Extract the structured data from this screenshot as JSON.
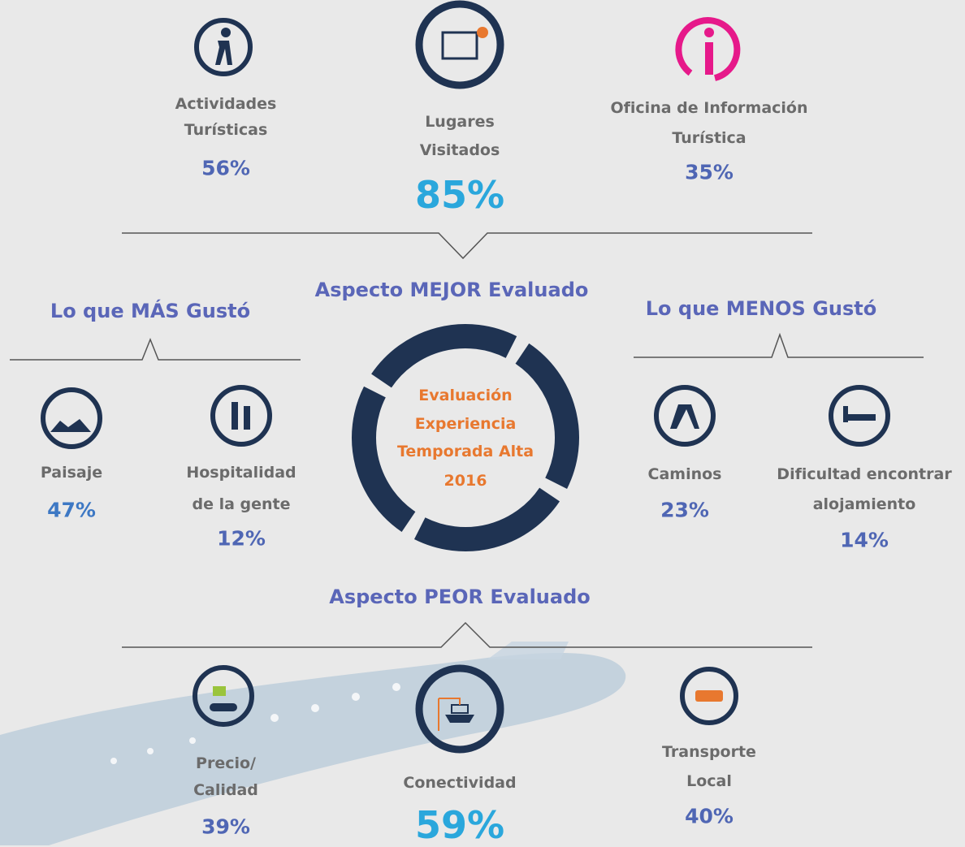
{
  "top": [
    {
      "label": [
        "Actividades",
        "Turísticas"
      ],
      "value": "56%"
    },
    {
      "label": [
        "Lugares",
        "Visitados"
      ],
      "value": "85%"
    },
    {
      "label": [
        "Oficina de Información",
        "Turística"
      ],
      "value": "35%"
    }
  ],
  "best_heading": "Aspecto MEJOR Evaluado",
  "most_liked": {
    "heading": "Lo que MÁS Gustó",
    "items": [
      {
        "label": [
          "Paisaje"
        ],
        "value": "47%"
      },
      {
        "label": [
          "Hospitalidad",
          "de la gente"
        ],
        "value": "12%"
      }
    ]
  },
  "least_liked": {
    "heading": "Lo que MENOS Gustó",
    "items": [
      {
        "label": [
          "Caminos"
        ],
        "value": "23%"
      },
      {
        "label": [
          "Dificultad encontrar",
          "alojamiento"
        ],
        "value": "14%"
      }
    ]
  },
  "center": [
    "Evaluación",
    "Experiencia",
    "Temporada Alta",
    "2016"
  ],
  "worst_heading": "Aspecto PEOR Evaluado",
  "bottom": [
    {
      "label": [
        "Precio/",
        "Calidad"
      ],
      "value": "39%"
    },
    {
      "label": [
        "Conectividad"
      ],
      "value": "59%"
    },
    {
      "label": [
        "Transporte",
        "Local"
      ],
      "value": "40%"
    }
  ]
}
